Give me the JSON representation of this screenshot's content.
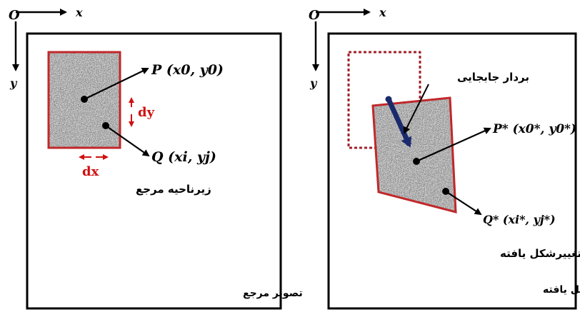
{
  "left_panel": {
    "origin": "O",
    "x_axis": "x",
    "y_axis": "y",
    "p_label": "P (x0, y0)",
    "q_label": "Q (xi, yj)",
    "dy_label": "dy",
    "dx_label": "dx",
    "subset_label": "زیرناحیه مرجع",
    "image_label": "تصویر مرجع"
  },
  "right_panel": {
    "origin": "O",
    "x_axis": "x",
    "y_axis": "y",
    "displacement_label": "بردار جابجایی",
    "p_label": "P* (x0*, y0*)",
    "q_label": "Q* (xi*, yj*)",
    "subset_label": "زیرناحیه تغییرشکل یافته",
    "image_label": "تصویر تغییرشکل یافته"
  },
  "colors": {
    "subset_border": "#c0282a",
    "dimension_arrows": "#d01010",
    "displacement_arrow": "#1a2a6c"
  }
}
